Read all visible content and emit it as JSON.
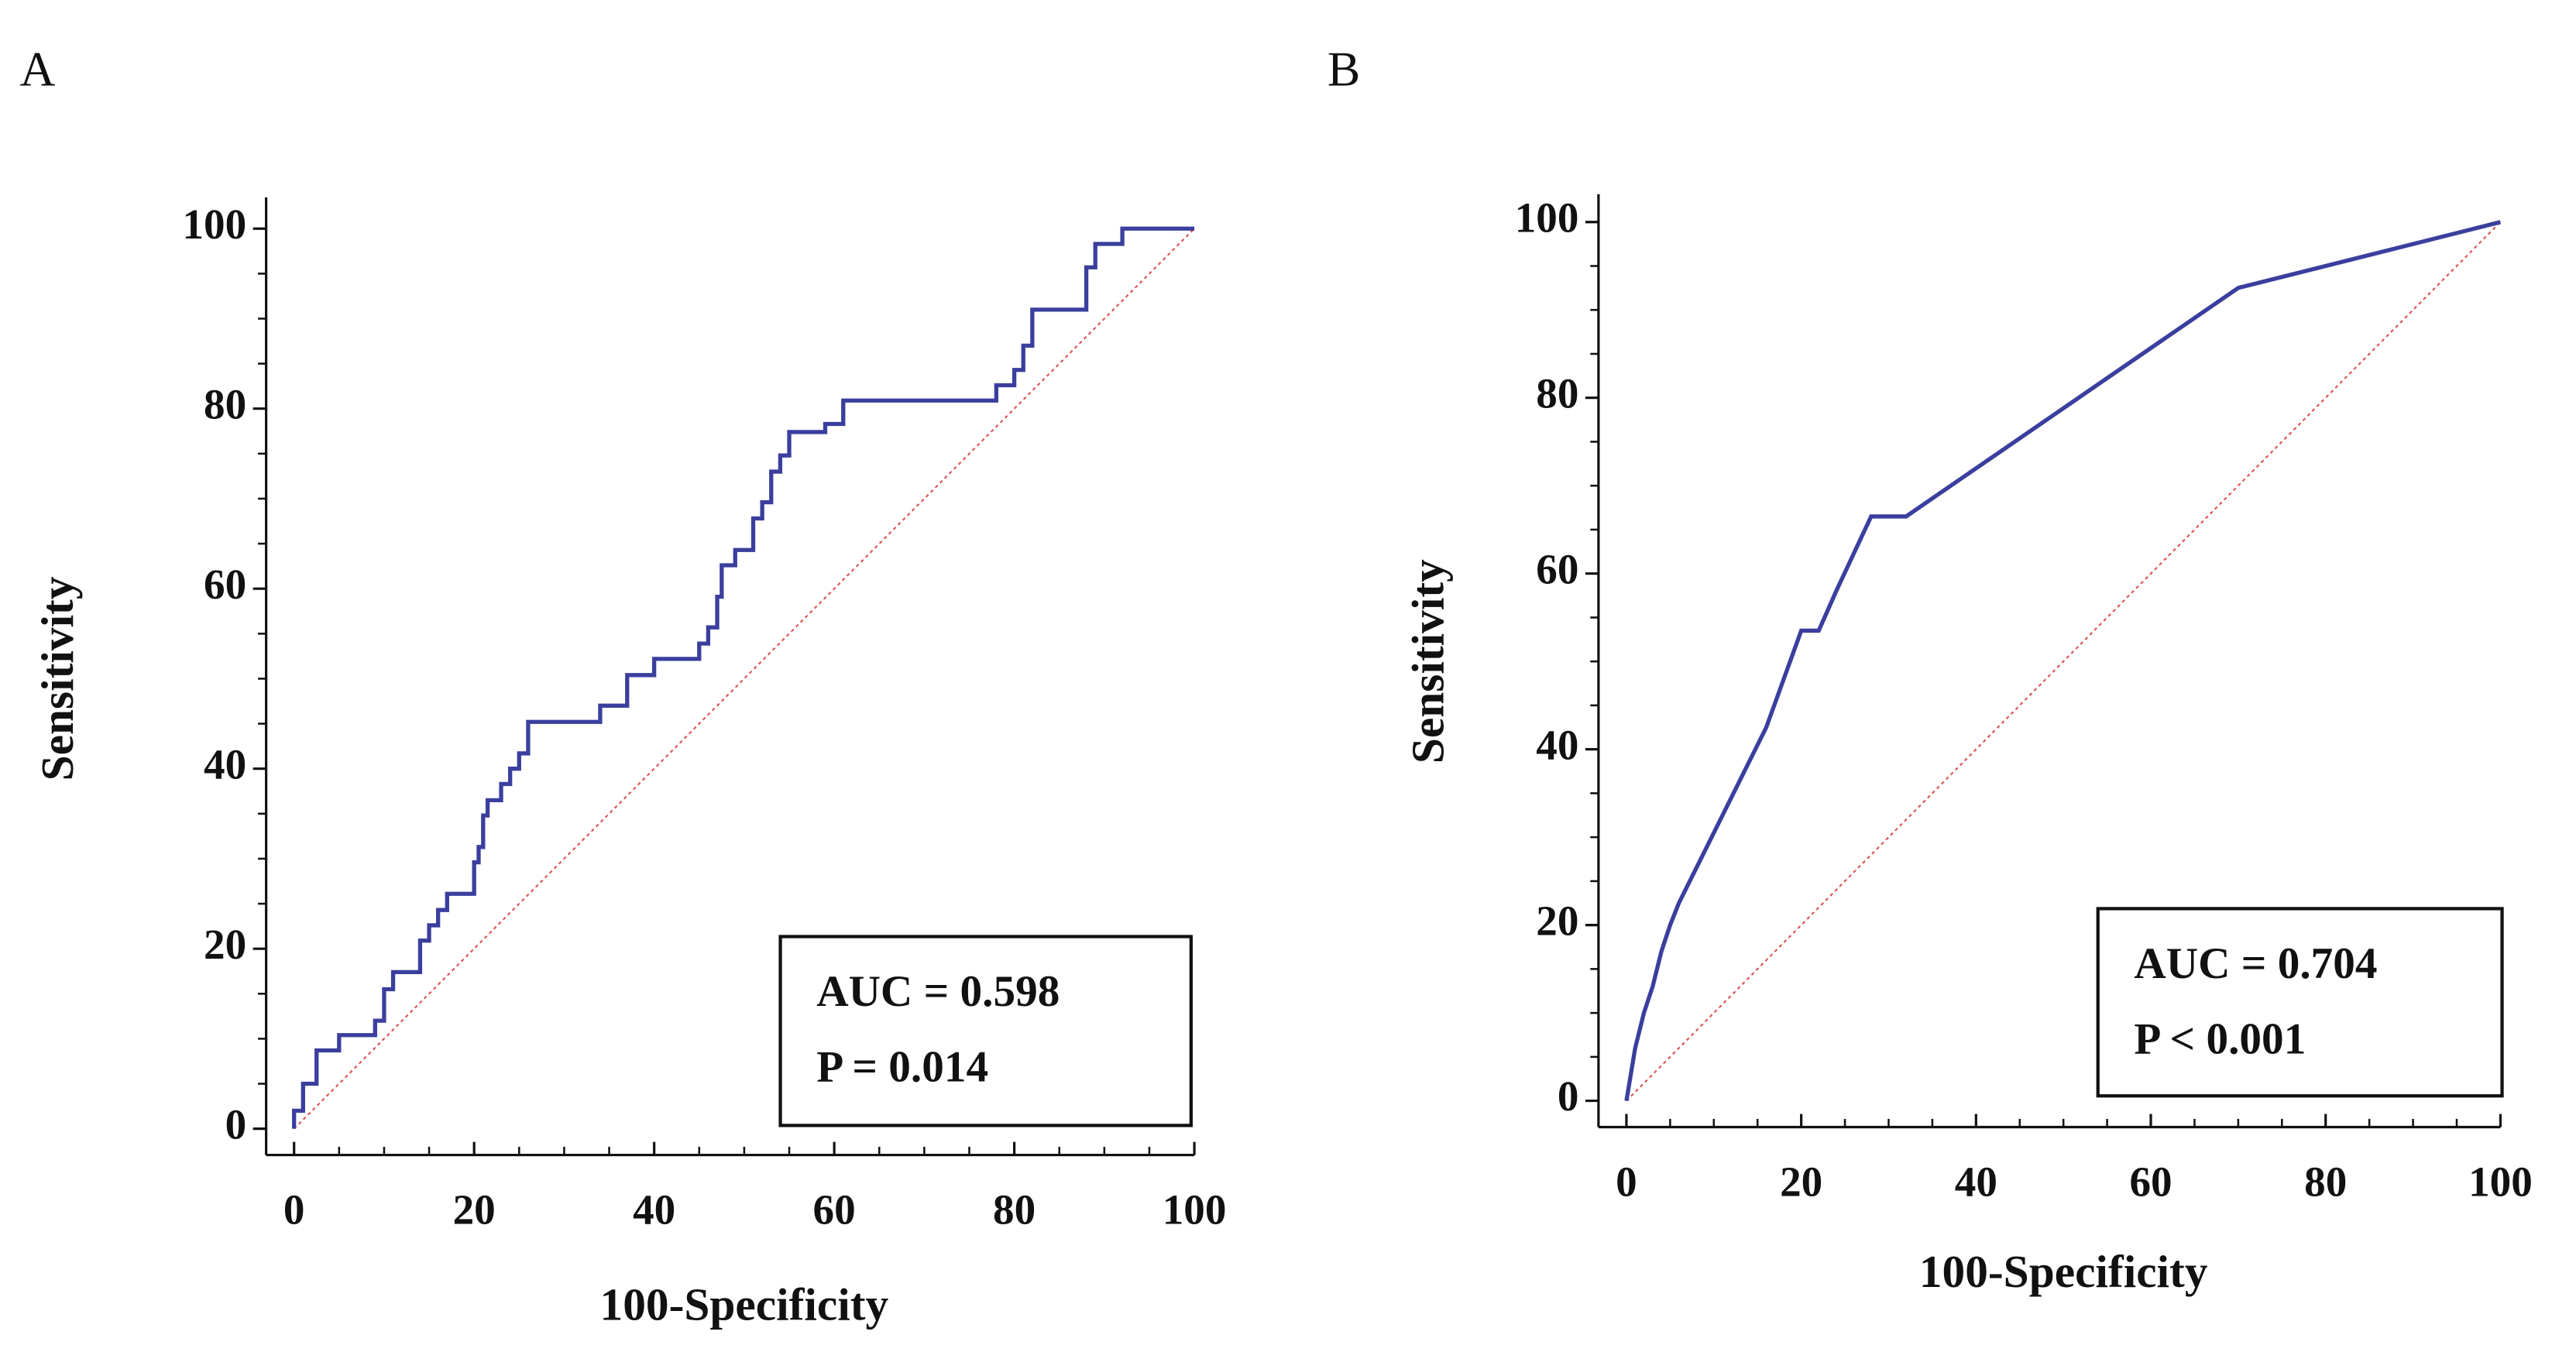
{
  "chart_data": [
    {
      "type": "line",
      "panel": "A",
      "xlabel": "100-Specificity",
      "ylabel": "Sensitivity",
      "annotations": [
        "AUC = 0.598",
        "P = 0.014"
      ],
      "color": "#3a3f9e",
      "x": [
        0,
        0,
        1,
        1,
        2.5,
        2.5,
        5,
        5,
        9,
        9,
        10,
        10,
        11,
        11,
        14,
        14,
        15,
        15,
        16,
        16,
        17,
        17,
        20,
        20,
        20.5,
        20.5,
        21,
        21,
        21.5,
        21.5,
        23,
        23,
        24,
        24,
        25,
        25,
        26,
        26,
        34,
        34,
        37,
        37,
        40,
        40,
        45,
        45,
        46,
        46,
        47,
        47,
        47.5,
        47.5,
        49,
        49,
        51,
        51,
        52,
        52,
        53,
        53,
        54,
        54,
        55,
        55,
        59,
        59,
        61,
        61,
        78,
        78,
        80,
        80,
        81,
        81,
        82,
        82,
        88,
        88,
        89,
        89,
        92,
        92,
        100
      ],
      "values": [
        0,
        2,
        2,
        5,
        5,
        8.7,
        8.7,
        10.4,
        10.4,
        12,
        12,
        15.5,
        15.5,
        17.4,
        17.4,
        20.9,
        20.9,
        22.6,
        22.6,
        24.3,
        24.3,
        26.1,
        26.1,
        29.6,
        29.6,
        31.3,
        31.3,
        34.8,
        34.8,
        36.5,
        36.5,
        38.3,
        38.3,
        40,
        40,
        41.7,
        41.7,
        45.2,
        45.2,
        47,
        47,
        50.4,
        50.4,
        52.2,
        52.2,
        53.9,
        53.9,
        55.7,
        55.7,
        59.1,
        59.1,
        62.6,
        62.6,
        64.3,
        64.3,
        67.8,
        67.8,
        69.6,
        69.6,
        73,
        73,
        74.8,
        74.8,
        77.4,
        77.4,
        78.3,
        78.3,
        80.9,
        80.9,
        82.6,
        82.6,
        84.3,
        84.3,
        87,
        87,
        91,
        91,
        95.7,
        95.7,
        98.3,
        98.3,
        100,
        100
      ],
      "xlim": [
        0,
        100
      ],
      "ylim": [
        0,
        100
      ],
      "xticks": [
        0,
        20,
        40,
        60,
        80,
        100
      ],
      "yticks": [
        0,
        20,
        40,
        60,
        80,
        100
      ]
    },
    {
      "type": "line",
      "panel": "B",
      "xlabel": "100-Specificity",
      "ylabel": "Sensitivity",
      "annotations": [
        "AUC = 0.704",
        "P < 0.001"
      ],
      "color": "#3a3f9e",
      "x": [
        0,
        0.5,
        1,
        2,
        3,
        4,
        5,
        6,
        16,
        20,
        22,
        24,
        28,
        32,
        70,
        100
      ],
      "values": [
        0,
        3,
        6,
        10,
        13,
        17,
        20,
        22.5,
        42.5,
        53.5,
        53.5,
        58,
        66.5,
        66.5,
        92.5,
        100
      ],
      "xlim": [
        0,
        100
      ],
      "ylim": [
        0,
        100
      ],
      "xticks": [
        0,
        20,
        40,
        60,
        80,
        100
      ],
      "yticks": [
        0,
        20,
        40,
        60,
        80,
        100
      ]
    }
  ]
}
